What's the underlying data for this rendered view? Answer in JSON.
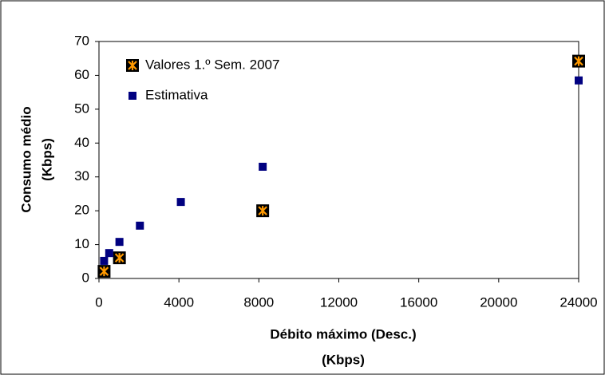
{
  "chart_data": {
    "type": "scatter",
    "x_label": [
      "Débito máximo (Desc.)",
      "(Kbps)"
    ],
    "y_label": [
      "Consumo médio",
      "(Kbps)"
    ],
    "xlim": [
      0,
      24000
    ],
    "xticks": [
      0,
      4000,
      8000,
      12000,
      16000,
      20000,
      24000
    ],
    "ylim": [
      0,
      70
    ],
    "yticks": [
      0,
      10,
      20,
      30,
      40,
      50,
      60,
      70
    ],
    "legend": "upper left",
    "series": [
      {
        "name": "Valores 1.º Sem. 2007",
        "color": "#ff9900",
        "edgecolor": "#000000",
        "marker": "star-square",
        "x": [
          256,
          1024,
          8192,
          24000
        ],
        "values": [
          2.1,
          6.1,
          20,
          64.2
        ]
      },
      {
        "name": "Estimativa",
        "color": "#000080",
        "marker": "square",
        "x": [
          256,
          512,
          1024,
          2048,
          4096,
          8192,
          24000
        ],
        "values": [
          5.2,
          7.5,
          10.8,
          15.6,
          22.6,
          33,
          58.5
        ]
      }
    ]
  }
}
